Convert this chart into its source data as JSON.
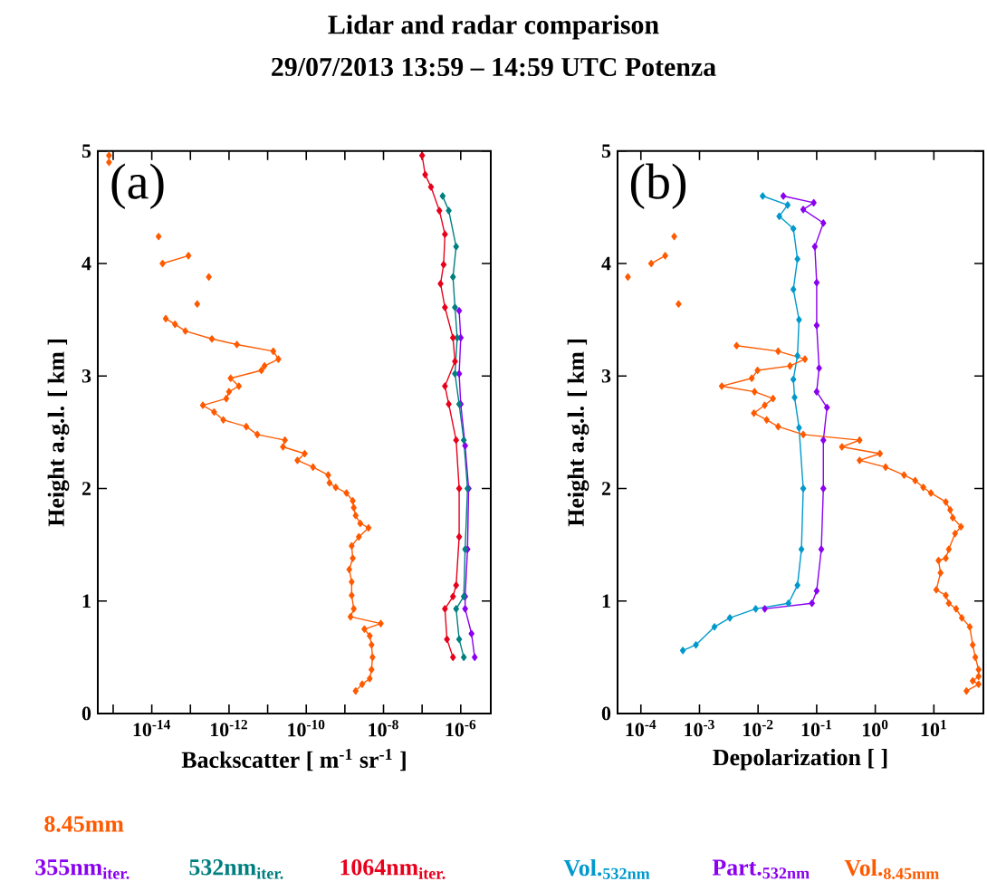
{
  "chart_data": [
    {
      "type": "line",
      "title": "Lidar and radar comparison",
      "subtitle": "29/07/2013 13:59 – 14:59 UTC    Potenza",
      "xlabel": "Backscatter [ m$^{-1}$ sr$^{-1}$ ]",
      "ylabel": "Height a.g.l. [ km ]",
      "annotations": [
        "(a)"
      ],
      "log": "x",
      "xlim": [
        4e-16,
        6e-06
      ],
      "ylim": [
        0,
        5
      ],
      "xticks": [
        {
          "value": 1e-15,
          "label": null
        },
        {
          "value": 1e-14,
          "label": "10$^{-14}$"
        },
        {
          "value": 1e-13,
          "label": null
        },
        {
          "value": 1e-12,
          "label": "10$^{-12}$"
        },
        {
          "value": 1e-11,
          "label": null
        },
        {
          "value": 1e-10,
          "label": "10$^{-10}$"
        },
        {
          "value": 1e-09,
          "label": null
        },
        {
          "value": 1e-08,
          "label": "10$^{-8}$"
        },
        {
          "value": 1e-07,
          "label": null
        },
        {
          "value": 1e-06,
          "label": "10$^{-6}$"
        }
      ],
      "yticks": [
        0,
        1,
        2,
        3,
        4,
        5
      ],
      "marker": "diamond",
      "line_style": "solid",
      "legend": "bottom",
      "series": [
        {
          "name": "8.45mm",
          "color": "#ff5a00",
          "x": [
            7.8e-16,
            null,
            7.8e-16,
            null,
            1.5e-14,
            null,
            8.9e-14,
            1.9e-14,
            null,
            3e-13,
            null,
            1.5e-13,
            null,
            2.3e-14,
            4e-14,
            7.4e-14,
            3.6e-13,
            1.6e-12,
            1.4e-11,
            1.9e-11,
            8.3e-12,
            6.9e-12,
            1.1e-12,
            1.8e-12,
            1e-12,
            8.5e-13,
            2.1e-13,
            4.1e-13,
            7.1e-13,
            2.8e-12,
            5.4e-12,
            2.8e-11,
            2.5e-11,
            9.1e-11,
            5.9e-11,
            1.5e-10,
            3.7e-10,
            4e-10,
            5.8e-10,
            1.1e-09,
            1.6e-09,
            1.7e-09,
            1.9e-09,
            2.5e-09,
            4.1e-09,
            2.3e-09,
            1.5e-09,
            1.6e-09,
            1.3e-09,
            1.5e-09,
            1.5e-09,
            1.7e-09,
            1.4e-09,
            8.5e-09,
            3.2e-09,
            4.4e-09,
            4.9e-09,
            5.2e-09,
            4.9e-09,
            4.4e-09,
            2.8e-09,
            1.9e-09
          ],
          "values": [
            4.96,
            null,
            4.9,
            null,
            4.24,
            null,
            4.07,
            4.0,
            null,
            3.88,
            null,
            3.64,
            null,
            3.51,
            3.46,
            3.4,
            3.33,
            3.28,
            3.22,
            3.15,
            3.09,
            3.05,
            2.98,
            2.91,
            2.86,
            2.8,
            2.74,
            2.68,
            2.61,
            2.55,
            2.48,
            2.43,
            2.37,
            2.31,
            2.25,
            2.19,
            2.12,
            2.05,
            2.01,
            1.96,
            1.89,
            1.83,
            1.76,
            1.69,
            1.65,
            1.57,
            1.49,
            1.38,
            1.28,
            1.17,
            1.05,
            0.93,
            0.86,
            0.8,
            0.75,
            0.69,
            0.61,
            0.5,
            0.39,
            0.31,
            0.26,
            0.2
          ]
        },
        {
          "name": "355nm$_{iter.}$",
          "color": "#8a00f0",
          "x": [
            9.1e-07,
            1e-06,
            9.1e-07,
            1e-06,
            1.3e-06,
            1.6e-06,
            1.5e-06,
            1.3e-06,
            1.3e-06,
            1.9e-06,
            2.3e-06
          ],
          "values": [
            3.58,
            3.34,
            3.02,
            2.75,
            2.38,
            2.0,
            1.46,
            1.04,
            0.93,
            0.71,
            0.5
          ]
        },
        {
          "name": "532nm$_{iter.}$",
          "color": "#007f80",
          "x": [
            3.4e-07,
            4.9e-07,
            7.6e-07,
            6.3e-07,
            7.1e-07,
            8.1e-07,
            7.1e-07,
            9.1e-07,
            1.2e-06,
            1.5e-06,
            1.3e-06,
            1.2e-06,
            7.6e-07,
            9.1e-07,
            1.2e-06
          ],
          "values": [
            4.6,
            4.47,
            4.15,
            3.88,
            3.61,
            3.34,
            3.02,
            2.75,
            2.43,
            2.0,
            1.46,
            1.04,
            0.93,
            0.66,
            0.5
          ]
        },
        {
          "name": "1064nm$_{iter.}$",
          "color": "#e8001c",
          "x": [
            1e-07,
            1.2e-07,
            1.7e-07,
            2.8e-07,
            3.9e-07,
            3.6e-07,
            3e-07,
            3.9e-07,
            6.3e-07,
            7.1e-07,
            3.9e-07,
            4.9e-07,
            7.6e-07,
            9.1e-07,
            9.1e-07,
            7.6e-07,
            6.3e-07,
            3.9e-07,
            4.4e-07,
            6.3e-07
          ],
          "values": [
            4.96,
            4.79,
            4.68,
            4.47,
            4.26,
            3.99,
            3.82,
            3.61,
            3.34,
            3.13,
            2.91,
            2.75,
            2.43,
            2.0,
            1.57,
            1.14,
            1.04,
            0.93,
            0.66,
            0.5
          ]
        }
      ]
    },
    {
      "type": "line",
      "xlabel": "Depolarization [  ]",
      "ylabel": "Height a.g.l. [ km ]",
      "annotations": [
        "(b)"
      ],
      "log": "x",
      "xlim": [
        4e-05,
        70
      ],
      "ylim": [
        0,
        5
      ],
      "xticks": [
        {
          "value": 0.0001,
          "label": "10$^{-4}$"
        },
        {
          "value": 0.001,
          "label": "10$^{-3}$"
        },
        {
          "value": 0.01,
          "label": "10$^{-2}$"
        },
        {
          "value": 0.1,
          "label": "10$^{-1}$"
        },
        {
          "value": 1,
          "label": "10$^{0}$"
        },
        {
          "value": 10,
          "label": "10$^{1}$"
        }
      ],
      "yticks": [
        0,
        1,
        2,
        3,
        4,
        5
      ],
      "marker": "diamond",
      "line_style": "solid",
      "legend": "bottom",
      "series": [
        {
          "name": "Vol.$_{532nm}$",
          "color": "#0099cc",
          "x": [
            0.012,
            0.032,
            0.023,
            0.04,
            0.047,
            0.04,
            0.05,
            0.047,
            0.04,
            0.042,
            0.05,
            0.059,
            0.055,
            0.047,
            0.033,
            0.0091,
            0.0033,
            0.0018,
            0.00087,
            0.00052
          ],
          "values": [
            4.6,
            4.52,
            4.42,
            4.31,
            4.04,
            3.77,
            3.5,
            3.18,
            2.97,
            2.81,
            2.54,
            2.0,
            1.46,
            1.14,
            0.98,
            0.93,
            0.85,
            0.77,
            0.61,
            0.56
          ]
        },
        {
          "name": "Part.$_{532nm}$",
          "color": "#8a00f0",
          "x": [
            0.027,
            0.089,
            0.059,
            0.13,
            0.093,
            0.1,
            0.1,
            0.11,
            0.1,
            0.15,
            0.13,
            0.13,
            0.12,
            0.1,
            0.083,
            0.013
          ],
          "values": [
            4.6,
            4.54,
            4.48,
            4.36,
            4.15,
            3.83,
            3.45,
            3.07,
            2.86,
            2.72,
            2.43,
            2.0,
            1.46,
            1.09,
            0.98,
            0.93
          ]
        },
        {
          "name": "Vol.$_{8.45mm}$",
          "color": "#ff5a00",
          "x": [
            0.00037,
            null,
            0.00026,
            0.00015,
            null,
            6e-05,
            null,
            0.00044,
            null,
            0.0043,
            0.022,
            0.063,
            0.035,
            0.0098,
            0.0078,
            0.0024,
            0.0087,
            0.018,
            0.013,
            0.0085,
            0.014,
            0.022,
            0.059,
            0.54,
            0.27,
            1.2,
            0.54,
            1.5,
            3.1,
            4.8,
            6.6,
            8.9,
            16,
            19,
            21,
            29,
            23,
            18,
            16,
            12,
            13,
            11,
            16,
            18,
            24,
            30,
            41,
            46,
            51,
            58,
            58,
            46,
            58,
            36
          ],
          "values": [
            4.24,
            null,
            4.07,
            4.0,
            null,
            3.88,
            null,
            3.64,
            null,
            3.27,
            3.22,
            3.15,
            3.09,
            3.05,
            2.98,
            2.91,
            2.86,
            2.8,
            2.74,
            2.67,
            2.61,
            2.55,
            2.48,
            2.43,
            2.37,
            2.31,
            2.25,
            2.19,
            2.12,
            2.07,
            2.01,
            1.96,
            1.88,
            1.81,
            1.74,
            1.66,
            1.6,
            1.46,
            1.38,
            1.36,
            1.25,
            1.1,
            1.05,
            0.98,
            0.93,
            0.85,
            0.77,
            0.61,
            0.5,
            0.39,
            0.33,
            0.29,
            0.26,
            0.2
          ]
        }
      ]
    }
  ]
}
